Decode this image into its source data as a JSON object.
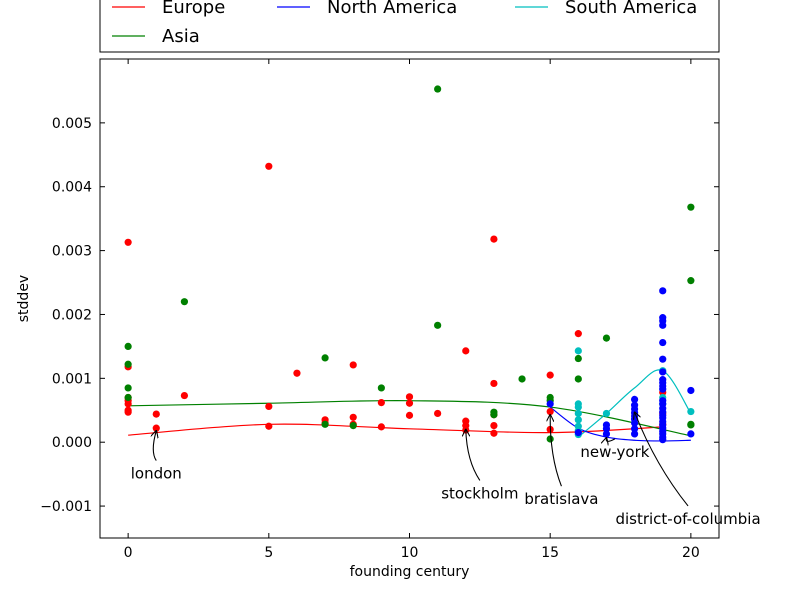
{
  "chart_data": {
    "type": "scatter",
    "xlabel": "founding century",
    "ylabel": "stddev",
    "xlim": [
      -1,
      21
    ],
    "ylim": [
      -0.0015,
      0.006
    ],
    "xticks": [
      0,
      5,
      10,
      15,
      20
    ],
    "xtick_labels": [
      "0",
      "5",
      "10",
      "15",
      "20"
    ],
    "yticks": [
      -0.001,
      0.0,
      0.001,
      0.002,
      0.003,
      0.004,
      0.005
    ],
    "ytick_labels": [
      "−0.001",
      "0.000",
      "0.001",
      "0.002",
      "0.003",
      "0.004",
      "0.005"
    ],
    "grid": false,
    "legend_position": "top",
    "series": [
      {
        "name": "Europe",
        "color": "#ff0000",
        "points": [
          [
            0,
            0.00313
          ],
          [
            0,
            0.00118
          ],
          [
            0,
            0.0007
          ],
          [
            0,
            0.00065
          ],
          [
            0,
            0.0006
          ],
          [
            0,
            0.0005
          ],
          [
            0,
            0.00047
          ],
          [
            1,
            0.00044
          ],
          [
            1,
            0.00022
          ],
          [
            2,
            0.00073
          ],
          [
            5,
            0.00432
          ],
          [
            5,
            0.00056
          ],
          [
            5,
            0.00025
          ],
          [
            6,
            0.00108
          ],
          [
            7,
            0.00035
          ],
          [
            7,
            0.0003
          ],
          [
            8,
            0.00121
          ],
          [
            8,
            0.00039
          ],
          [
            8,
            0.00028
          ],
          [
            9,
            0.00062
          ],
          [
            9,
            0.00024
          ],
          [
            10,
            0.00071
          ],
          [
            10,
            0.00061
          ],
          [
            10,
            0.00042
          ],
          [
            11,
            0.00045
          ],
          [
            12,
            0.00143
          ],
          [
            12,
            0.00033
          ],
          [
            12,
            0.00026
          ],
          [
            12,
            0.00019
          ],
          [
            13,
            0.00318
          ],
          [
            13,
            0.00092
          ],
          [
            13,
            0.00043
          ],
          [
            13,
            0.00026
          ],
          [
            13,
            0.00014
          ],
          [
            15,
            0.00105
          ],
          [
            15,
            0.00048
          ],
          [
            15,
            0.0002
          ],
          [
            16,
            0.0017
          ],
          [
            19,
            0.00078
          ],
          [
            19,
            0.00045
          ],
          [
            19,
            0.00028
          ]
        ],
        "curve": [
          [
            0,
            0.00011
          ],
          [
            5,
            0.00028
          ],
          [
            10,
            0.00021
          ],
          [
            15,
            0.00015
          ],
          [
            19,
            0.00024
          ]
        ]
      },
      {
        "name": "North America",
        "color": "#0000ff",
        "points": [
          [
            15,
            0.0006
          ],
          [
            16,
            0.00015
          ],
          [
            17,
            0.00027
          ],
          [
            17,
            0.00021
          ],
          [
            17,
            0.00013
          ],
          [
            18,
            0.00067
          ],
          [
            18,
            0.00058
          ],
          [
            18,
            0.00052
          ],
          [
            18,
            0.00046
          ],
          [
            18,
            0.00041
          ],
          [
            18,
            0.00036
          ],
          [
            18,
            0.0003
          ],
          [
            18,
            0.00021
          ],
          [
            18,
            0.00013
          ],
          [
            19,
            0.00237
          ],
          [
            19,
            0.00195
          ],
          [
            19,
            0.0019
          ],
          [
            19,
            0.00183
          ],
          [
            19,
            0.00156
          ],
          [
            19,
            0.0013
          ],
          [
            19,
            0.0011
          ],
          [
            19,
            0.00098
          ],
          [
            19,
            0.00093
          ],
          [
            19,
            0.00088
          ],
          [
            19,
            0.00083
          ],
          [
            19,
            0.00065
          ],
          [
            19,
            0.0006
          ],
          [
            19,
            0.00053
          ],
          [
            19,
            0.00047
          ],
          [
            19,
            0.00042
          ],
          [
            19,
            0.00038
          ],
          [
            19,
            0.00032
          ],
          [
            19,
            0.00027
          ],
          [
            19,
            0.00022
          ],
          [
            19,
            0.00017
          ],
          [
            19,
            0.00013
          ],
          [
            19,
            8e-05
          ],
          [
            19,
            4e-05
          ],
          [
            20,
            0.00081
          ],
          [
            20,
            0.00013
          ]
        ],
        "curve": [
          [
            15,
            0.00055
          ],
          [
            16,
            0.00022
          ],
          [
            17,
            8e-05
          ],
          [
            18,
            3e-05
          ],
          [
            19,
            2e-05
          ],
          [
            20,
            3e-05
          ]
        ]
      },
      {
        "name": "South America",
        "color": "#00bfbf",
        "points": [
          [
            16,
            0.00143
          ],
          [
            16,
            0.0006
          ],
          [
            16,
            0.00055
          ],
          [
            16,
            0.00045
          ],
          [
            16,
            0.00035
          ],
          [
            16,
            0.00025
          ],
          [
            16,
            0.00018
          ],
          [
            16,
            0.00012
          ],
          [
            17,
            0.00045
          ],
          [
            19,
            0.00112
          ],
          [
            19,
            0.0007
          ],
          [
            19,
            0.0006
          ],
          [
            20,
            0.00048
          ]
        ],
        "curve": [
          [
            16,
            8e-05
          ],
          [
            17,
            0.00045
          ],
          [
            18,
            0.00085
          ],
          [
            19,
            0.00112
          ],
          [
            20,
            0.00045
          ]
        ]
      },
      {
        "name": "Asia",
        "color": "#008000",
        "points": [
          [
            0,
            0.0015
          ],
          [
            0,
            0.00122
          ],
          [
            0,
            0.00085
          ],
          [
            0,
            0.0007
          ],
          [
            2,
            0.0022
          ],
          [
            7,
            0.00132
          ],
          [
            7,
            0.00028
          ],
          [
            8,
            0.00026
          ],
          [
            9,
            0.00085
          ],
          [
            11,
            0.00553
          ],
          [
            11,
            0.00183
          ],
          [
            13,
            0.00047
          ],
          [
            13,
            0.00043
          ],
          [
            14,
            0.00099
          ],
          [
            15,
            0.0007
          ],
          [
            15,
            0.00065
          ],
          [
            15,
            5e-05
          ],
          [
            16,
            0.00131
          ],
          [
            16,
            0.00099
          ],
          [
            17,
            0.00163
          ],
          [
            20,
            0.00368
          ],
          [
            20,
            0.00253
          ],
          [
            20,
            0.00028
          ],
          [
            20,
            0.00027
          ]
        ],
        "curve": [
          [
            0,
            0.00057
          ],
          [
            5,
            0.00061
          ],
          [
            10,
            0.00065
          ],
          [
            15,
            0.00055
          ],
          [
            20,
            0.0001
          ]
        ]
      }
    ],
    "legend_items": [
      {
        "label": "Europe",
        "color": "#ff0000"
      },
      {
        "label": "North America",
        "color": "#0000ff"
      },
      {
        "label": "South America",
        "color": "#00bfbf"
      },
      {
        "label": "Asia",
        "color": "#008000"
      }
    ],
    "annotations": [
      {
        "text": "london",
        "x": 1,
        "y": 0.00021,
        "tx": 1,
        "ty": -0.00057
      },
      {
        "text": "stockholm",
        "x": 12,
        "y": 0.00023,
        "tx": 12.5,
        "ty": -0.00088
      },
      {
        "text": "bratislava",
        "x": 15,
        "y": 0.00046,
        "tx": 15.4,
        "ty": -0.00097
      },
      {
        "text": "new-york",
        "x": 17,
        "y": 0.0001,
        "tx": 17.3,
        "ty": -0.00023
      },
      {
        "text": "district-of-columbia",
        "x": 18,
        "y": 0.0005,
        "tx": 19.9,
        "ty": -0.00128
      }
    ]
  }
}
